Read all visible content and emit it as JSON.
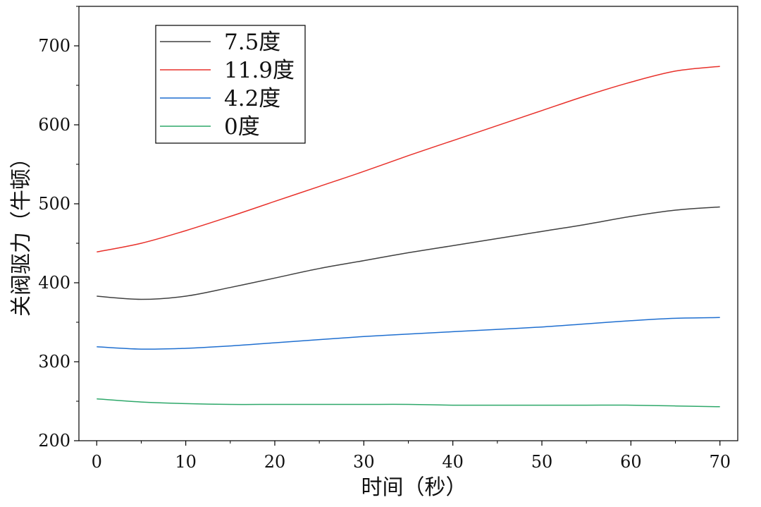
{
  "chart_data": {
    "type": "line",
    "title": "",
    "xlabel": "时间（秒）",
    "ylabel": "关阀驱力（牛顿）",
    "xlim": [
      -2,
      72
    ],
    "ylim": [
      200,
      750
    ],
    "x_ticks": [
      0,
      10,
      20,
      30,
      40,
      50,
      60,
      70
    ],
    "y_ticks": [
      200,
      300,
      400,
      500,
      600,
      700
    ],
    "grid": false,
    "legend_position": "top-left",
    "x": [
      0,
      5,
      10,
      15,
      20,
      25,
      30,
      35,
      40,
      45,
      50,
      55,
      60,
      65,
      70
    ],
    "series": [
      {
        "name": "7.5度",
        "color": "#404040",
        "values": [
          383,
          379,
          383,
          394,
          406,
          418,
          428,
          438,
          447,
          456,
          465,
          474,
          484,
          492,
          496
        ]
      },
      {
        "name": "11.9度",
        "color": "#e8312b",
        "values": [
          439,
          450,
          466,
          484,
          503,
          522,
          541,
          561,
          580,
          599,
          618,
          637,
          654,
          668,
          674
        ]
      },
      {
        "name": "4.2度",
        "color": "#1f6fd0",
        "values": [
          319,
          316,
          317,
          320,
          324,
          328,
          332,
          335,
          338,
          341,
          344,
          348,
          352,
          355,
          356
        ]
      },
      {
        "name": "0度",
        "color": "#2ea86a",
        "values": [
          253,
          249,
          247,
          246,
          246,
          246,
          246,
          246,
          245,
          245,
          245,
          245,
          245,
          244,
          243
        ]
      }
    ]
  }
}
